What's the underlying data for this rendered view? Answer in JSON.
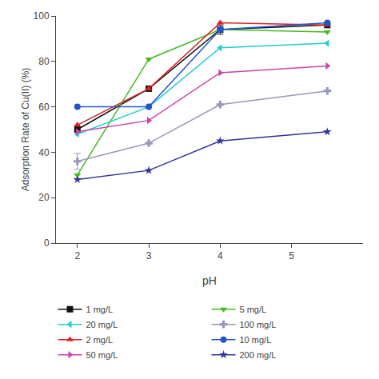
{
  "chart_data": {
    "type": "line",
    "x": [
      2,
      3,
      4,
      5.5
    ],
    "series": [
      {
        "name": "1 mg/L",
        "color": "#111111",
        "marker": "square",
        "values": [
          50,
          68,
          94,
          96
        ],
        "yerr": [
          null,
          null,
          2.0,
          null
        ]
      },
      {
        "name": "5 mg/L",
        "color": "#44bb22",
        "marker": "triangle-down",
        "values": [
          30,
          81,
          94,
          93
        ]
      },
      {
        "name": "20 mg/L",
        "color": "#22cccc",
        "marker": "triangle-left",
        "values": [
          48,
          60,
          86,
          88
        ]
      },
      {
        "name": "100 mg/L",
        "color": "#9999bb",
        "marker": "cross",
        "values": [
          36,
          44,
          61,
          67
        ],
        "yerr": [
          3.5,
          null,
          null,
          null
        ]
      },
      {
        "name": "2 mg/L",
        "color": "#dd2222",
        "marker": "triangle-up",
        "values": [
          52,
          68,
          97,
          96
        ]
      },
      {
        "name": "10 mg/L",
        "color": "#2255cc",
        "marker": "circle",
        "values": [
          60,
          60,
          94,
          97
        ]
      },
      {
        "name": "50 mg/L",
        "color": "#cc44aa",
        "marker": "triangle-right",
        "values": [
          49,
          54,
          75,
          78
        ]
      },
      {
        "name": "200 mg/L",
        "color": "#333399",
        "marker": "star",
        "values": [
          28,
          32,
          45,
          49
        ]
      }
    ],
    "xlabel": "pH",
    "ylabel": "Adsorption Rate of Cu(II) (%)",
    "xlim": [
      1.7,
      6.0
    ],
    "ylim": [
      0,
      100
    ],
    "xticks": [
      2,
      3,
      4,
      5
    ],
    "yticks": [
      0,
      20,
      40,
      60,
      80,
      100
    ],
    "grid": false,
    "legend": "bottom"
  }
}
